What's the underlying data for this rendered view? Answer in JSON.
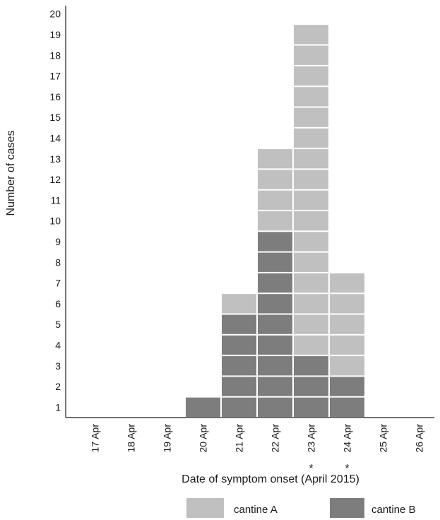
{
  "chart_data": {
    "type": "bar",
    "stacked": true,
    "unit_boxes": true,
    "categories": [
      "17 Apr",
      "18 Apr",
      "19 Apr",
      "20 Apr",
      "21 Apr",
      "22 Apr",
      "23 Apr",
      "24 Apr",
      "25 Apr",
      "26 Apr"
    ],
    "series": [
      {
        "name": "cantine B",
        "color": "#7d7d7d",
        "values": [
          0,
          0,
          0,
          1,
          5,
          9,
          3,
          2,
          0,
          0
        ]
      },
      {
        "name": "cantine A",
        "color": "#c0c0c0",
        "values": [
          0,
          0,
          0,
          0,
          1,
          4,
          16,
          5,
          0,
          0
        ]
      }
    ],
    "category_marks": [
      "",
      "",
      "",
      "",
      "",
      "",
      "*",
      "*",
      "",
      ""
    ],
    "xlabel": "Date of symptom onset (April 2015)",
    "ylabel": "Number of cases",
    "yticks": [
      1,
      2,
      3,
      4,
      5,
      6,
      7,
      8,
      9,
      10,
      11,
      12,
      13,
      14,
      15,
      16,
      17,
      18,
      19,
      20
    ],
    "ylim": [
      0.5,
      20.5
    ],
    "grid": false,
    "legend_position": "bottom-right"
  }
}
